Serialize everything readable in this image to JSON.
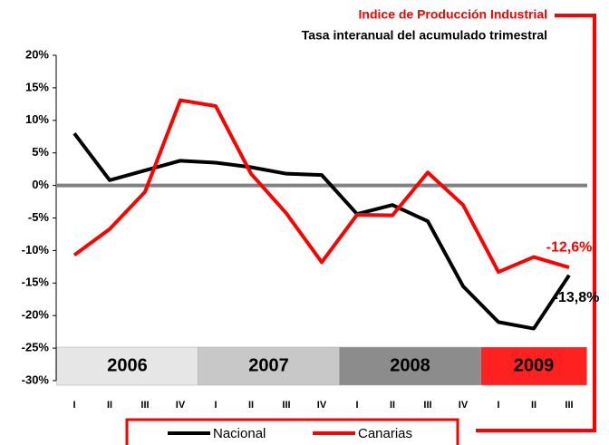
{
  "chart_data": {
    "type": "line",
    "title": "Indice de Producción Industrial",
    "subtitle": "Tasa interanual del  acumulado trimestral",
    "categories": [
      "I",
      "II",
      "III",
      "IV",
      "I",
      "II",
      "III",
      "IV",
      "I",
      "II",
      "III",
      "IV",
      "I",
      "II",
      "III"
    ],
    "series": [
      {
        "name": "Nacional",
        "color": "#000000",
        "values": [
          8,
          0.8,
          2.3,
          3.8,
          3.5,
          2.8,
          1.8,
          1.6,
          -4.4,
          -3.0,
          -5.5,
          -15.5,
          -21,
          -22,
          -13.8
        ],
        "value_labels": [
          null,
          null,
          null,
          null,
          null,
          null,
          null,
          null,
          null,
          null,
          null,
          null,
          null,
          null,
          "-13,8%"
        ]
      },
      {
        "name": "Canarias",
        "color": "#ff0000",
        "values": [
          -10.7,
          -6.7,
          -1.0,
          13.1,
          12.2,
          1.8,
          -4.3,
          -11.8,
          -4.5,
          -4.6,
          2.0,
          -3.0,
          -13.3,
          -11.0,
          -12.6
        ],
        "value_labels": [
          null,
          null,
          null,
          null,
          null,
          null,
          null,
          null,
          null,
          null,
          null,
          null,
          null,
          null,
          "-12,6%"
        ]
      }
    ],
    "ylim": [
      -30,
      20
    ],
    "yticks": [
      {
        "value": -30,
        "label": "-30%"
      },
      {
        "value": -25,
        "label": "-25%"
      },
      {
        "value": -20,
        "label": "-20%"
      },
      {
        "value": -15,
        "label": "-15%"
      },
      {
        "value": -10,
        "label": "-10%"
      },
      {
        "value": -5,
        "label": "-5%"
      },
      {
        "value": 0,
        "label": "0%"
      },
      {
        "value": 5,
        "label": "5%"
      },
      {
        "value": 10,
        "label": "10%"
      },
      {
        "value": 15,
        "label": "15%"
      },
      {
        "value": 20,
        "label": "20%"
      }
    ],
    "year_bands": [
      {
        "label": "2006",
        "color": "#e6e6e6"
      },
      {
        "label": "2007",
        "color": "#c8c8c8"
      },
      {
        "label": "2008",
        "color": "#8c8c8c"
      },
      {
        "label": "2009",
        "color": "#ff2020"
      }
    ]
  }
}
